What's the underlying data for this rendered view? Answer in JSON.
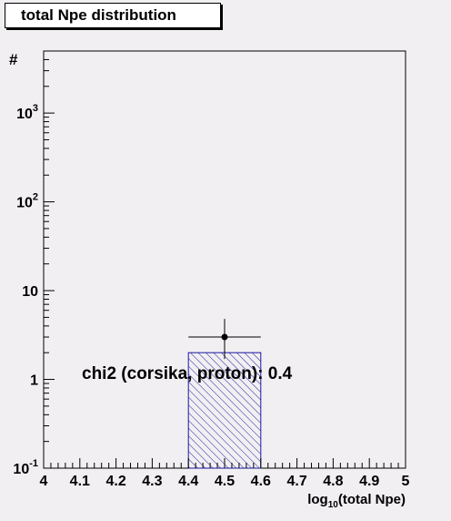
{
  "chart_data": {
    "type": "bar",
    "title": "total Npe distribution",
    "xlabel": "log10(total Npe)",
    "xlabel_main": "log",
    "xlabel_sub": "10",
    "xlabel_rest": "(total Npe)",
    "ylabel": "#",
    "xlim": [
      4,
      5
    ],
    "ylim": [
      0.1,
      5000
    ],
    "yscale": "log",
    "x_ticks": [
      "4",
      "4.1",
      "4.2",
      "4.3",
      "4.4",
      "4.5",
      "4.6",
      "4.7",
      "4.8",
      "4.9",
      "5"
    ],
    "y_ticks": [
      {
        "value": 0.1,
        "base": "10",
        "exp": "-1"
      },
      {
        "value": 1,
        "base": "1",
        "exp": ""
      },
      {
        "value": 10,
        "base": "10",
        "exp": ""
      },
      {
        "value": 100,
        "base": "10",
        "exp": "2"
      },
      {
        "value": 1000,
        "base": "10",
        "exp": "3"
      }
    ],
    "histogram": [
      {
        "x_low": 4.4,
        "x_high": 4.6,
        "value": 2
      }
    ],
    "data_points": [
      {
        "x": 4.5,
        "y": 3,
        "x_err": 0.1,
        "y_err_low": 1.3,
        "y_err_high": 1.8
      }
    ],
    "annotation": "chi2 (corsika, proton): 0.4",
    "grid": false
  }
}
